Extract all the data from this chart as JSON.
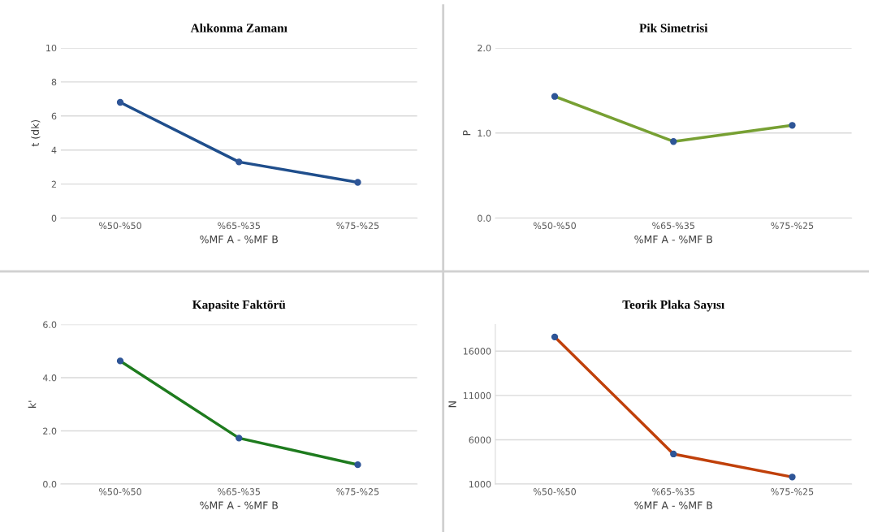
{
  "chart_data": [
    {
      "type": "line",
      "title": "Alıkonma Zamanı",
      "xlabel": "%MF A - %MF B",
      "ylabel": "t (dk)",
      "categories": [
        "%50-%50",
        "%65-%35",
        "%75-%25"
      ],
      "series": [
        {
          "color": "#1f4e8c",
          "values": [
            6.8,
            3.3,
            2.1
          ]
        }
      ],
      "ylim": [
        0,
        10
      ],
      "yticks": [
        0,
        2,
        4,
        6,
        8,
        10
      ],
      "grid": "y",
      "marker": "circle",
      "line_style": "solid"
    },
    {
      "type": "line",
      "title": "Pik Simetrisi",
      "xlabel": "%MF A - %MF B",
      "ylabel": "P",
      "categories": [
        "%50-%50",
        "%65-%35",
        "%75-%25"
      ],
      "series": [
        {
          "color": "#77a033",
          "values": [
            1.43,
            0.9,
            1.09
          ]
        }
      ],
      "ylim": [
        0,
        2
      ],
      "yticks": [
        {
          "value": 0,
          "label": "0.0"
        },
        {
          "value": 1,
          "label": "1.0"
        },
        {
          "value": 2,
          "label": "2.0"
        }
      ],
      "grid": "y",
      "marker": "circle",
      "line_style": "solid"
    },
    {
      "type": "line",
      "title": "Kapasite Faktörü",
      "xlabel": "%MF A - %MF B",
      "ylabel": "k'",
      "categories": [
        "%50-%50",
        "%65-%35",
        "%75-%25"
      ],
      "series": [
        {
          "color": "#1e7b1e",
          "values": [
            4.63,
            1.73,
            0.73
          ]
        }
      ],
      "ylim": [
        0,
        6
      ],
      "yticks": [
        {
          "value": 0,
          "label": "0.0"
        },
        {
          "value": 2,
          "label": "2.0"
        },
        {
          "value": 4,
          "label": "4.0"
        },
        {
          "value": 6,
          "label": "6.0"
        }
      ],
      "grid": "y",
      "marker": "circle",
      "line_style": "solid"
    },
    {
      "type": "line",
      "title": "Teorik Plaka Sayısı",
      "xlabel": "%MF A - %MF B",
      "ylabel": "N",
      "categories": [
        "%50-%50",
        "%65-%35",
        "%75-%25"
      ],
      "series": [
        {
          "color": "#c0400a",
          "values": [
            17600,
            4400,
            1800
          ]
        }
      ],
      "ylim": [
        1000,
        19000
      ],
      "yticks": [
        1000,
        6000,
        11000,
        16000
      ],
      "grid": "y",
      "marker": "circle",
      "line_style": "solid"
    }
  ]
}
